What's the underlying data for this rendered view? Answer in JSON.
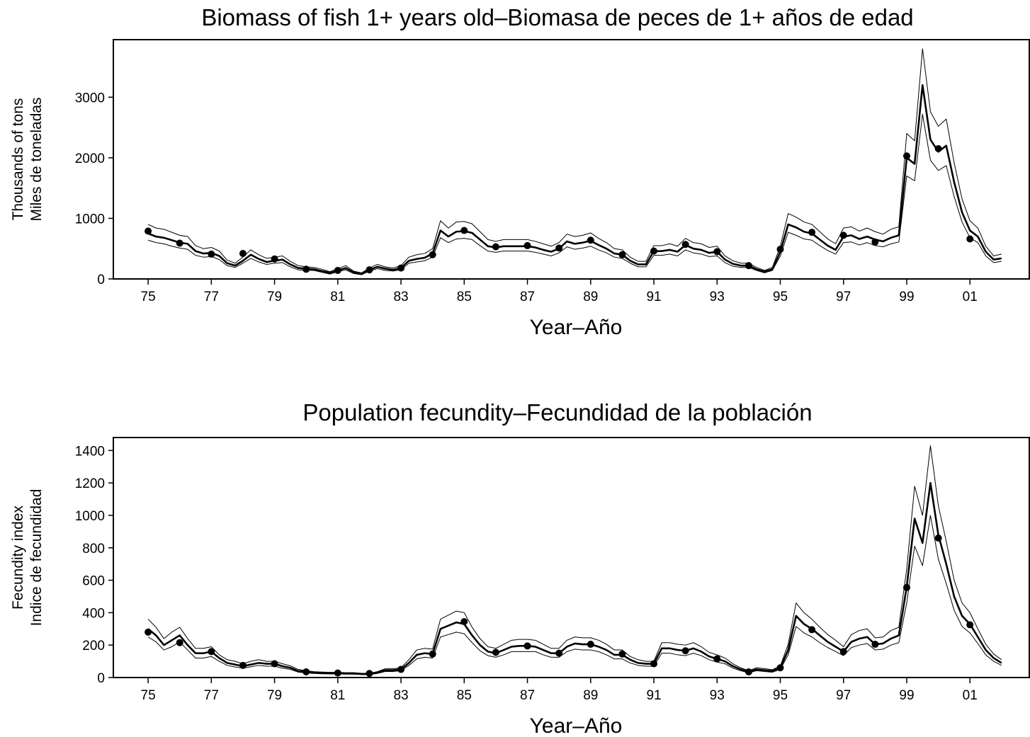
{
  "chart_data": [
    {
      "type": "line",
      "title": "Biomass of fish 1+ years old–Biomasa de peces de 1+ años de edad",
      "x_label": "Year–Año",
      "y_label": [
        "Thousands of tons",
        "Miles de toneladas"
      ],
      "xlim": [
        73.9,
        102.9
      ],
      "ylim": [
        0,
        3950
      ],
      "xticks": [
        75,
        77,
        79,
        81,
        83,
        85,
        87,
        89,
        91,
        93,
        95,
        97,
        99,
        {
          "value": 101,
          "label": "01"
        }
      ],
      "yticks": [
        0,
        1000,
        2000,
        3000
      ],
      "x": [
        75,
        75.25,
        75.5,
        75.75,
        76,
        76.25,
        76.5,
        76.75,
        77,
        77.25,
        77.5,
        77.75,
        78,
        78.25,
        78.5,
        78.75,
        79,
        79.25,
        79.5,
        79.75,
        80,
        80.25,
        80.5,
        80.75,
        81,
        81.25,
        81.5,
        81.75,
        82,
        82.25,
        82.5,
        82.75,
        83,
        83.25,
        83.5,
        83.75,
        84,
        84.25,
        84.5,
        84.75,
        85,
        85.25,
        85.5,
        85.75,
        86,
        86.25,
        86.5,
        86.75,
        87,
        87.25,
        87.5,
        87.75,
        88,
        88.25,
        88.5,
        88.75,
        89,
        89.25,
        89.5,
        89.75,
        90,
        90.25,
        90.5,
        90.75,
        91,
        91.25,
        91.5,
        91.75,
        92,
        92.25,
        92.5,
        92.75,
        93,
        93.25,
        93.5,
        93.75,
        94,
        94.25,
        94.5,
        94.75,
        95,
        95.25,
        95.5,
        95.75,
        96,
        96.25,
        96.5,
        96.75,
        97,
        97.25,
        97.5,
        97.75,
        98,
        98.25,
        98.5,
        98.75,
        99,
        99.25,
        99.5,
        99.75,
        100,
        100.25,
        100.5,
        100.75,
        101,
        101.25,
        101.5,
        101.75,
        102
      ],
      "series": [
        {
          "color": "#000000",
          "line_width": 1,
          "values": [
            900,
            840,
            820,
            770,
            720,
            700,
            550,
            500,
            520,
            460,
            310,
            260,
            360,
            480,
            400,
            340,
            360,
            380,
            290,
            220,
            200,
            190,
            160,
            120,
            170,
            220,
            130,
            100,
            180,
            240,
            200,
            180,
            220,
            360,
            400,
            420,
            500,
            960,
            840,
            940,
            950,
            910,
            780,
            650,
            620,
            650,
            650,
            650,
            650,
            620,
            580,
            540,
            600,
            740,
            700,
            720,
            760,
            670,
            600,
            500,
            480,
            360,
            290,
            290,
            550,
            550,
            580,
            540,
            670,
            600,
            580,
            520,
            540,
            380,
            300,
            260,
            260,
            190,
            140,
            190,
            540,
            1080,
            1020,
            940,
            900,
            780,
            660,
            580,
            840,
            860,
            790,
            840,
            780,
            740,
            820,
            860,
            2400,
            2280,
            3800,
            2760,
            2520,
            2640,
            1920,
            1320,
            960,
            840,
            540,
            380,
            410
          ]
        },
        {
          "color": "#000000",
          "line_width": 1,
          "values": [
            640,
            600,
            580,
            540,
            510,
            490,
            390,
            360,
            370,
            320,
            220,
            190,
            260,
            340,
            280,
            240,
            260,
            270,
            200,
            150,
            140,
            140,
            110,
            80,
            120,
            150,
            90,
            70,
            130,
            170,
            140,
            130,
            150,
            260,
            280,
            300,
            360,
            680,
            600,
            660,
            670,
            650,
            550,
            460,
            440,
            460,
            460,
            460,
            460,
            440,
            410,
            380,
            430,
            530,
            490,
            510,
            540,
            480,
            430,
            360,
            340,
            260,
            200,
            200,
            390,
            390,
            410,
            380,
            480,
            430,
            410,
            370,
            380,
            270,
            210,
            190,
            190,
            140,
            100,
            140,
            380,
            770,
            720,
            660,
            640,
            550,
            470,
            410,
            600,
            610,
            560,
            600,
            550,
            530,
            580,
            610,
            1700,
            1620,
            2720,
            1960,
            1790,
            1870,
            1360,
            940,
            680,
            600,
            380,
            270,
            290
          ]
        },
        {
          "color": "#000000",
          "line_width": 2.6,
          "values": [
            750,
            700,
            680,
            640,
            600,
            580,
            460,
            420,
            430,
            380,
            260,
            220,
            300,
            400,
            330,
            280,
            300,
            320,
            240,
            180,
            170,
            160,
            130,
            100,
            140,
            180,
            110,
            80,
            150,
            200,
            170,
            150,
            180,
            300,
            330,
            350,
            420,
            800,
            700,
            780,
            790,
            760,
            650,
            540,
            520,
            540,
            540,
            540,
            540,
            520,
            480,
            450,
            500,
            620,
            580,
            600,
            630,
            560,
            500,
            420,
            400,
            300,
            240,
            240,
            460,
            460,
            480,
            450,
            560,
            500,
            480,
            430,
            450,
            320,
            250,
            220,
            220,
            160,
            120,
            160,
            450,
            900,
            850,
            780,
            750,
            650,
            550,
            480,
            700,
            720,
            660,
            700,
            650,
            620,
            680,
            720,
            2000,
            1900,
            3200,
            2300,
            2100,
            2200,
            1600,
            1100,
            800,
            700,
            450,
            320,
            340
          ]
        },
        {
          "color": "#000000",
          "marker": "circle",
          "x": [
            75,
            76,
            77,
            78,
            79,
            80,
            81,
            82,
            83,
            84,
            85,
            86,
            87,
            88,
            89,
            90,
            91,
            92,
            93,
            94,
            95,
            96,
            97,
            98,
            99,
            100,
            101
          ],
          "values": [
            790,
            590,
            410,
            420,
            330,
            160,
            140,
            150,
            180,
            400,
            800,
            530,
            550,
            510,
            640,
            400,
            460,
            570,
            450,
            220,
            490,
            770,
            720,
            610,
            2030,
            2150,
            660
          ]
        }
      ]
    },
    {
      "type": "line",
      "title": "Population fecundity–Fecundidad de la población",
      "x_label": "Year–Año",
      "y_label": [
        "Fecundity index",
        "Indice de fecundidad"
      ],
      "xlim": [
        73.9,
        102.9
      ],
      "ylim": [
        0,
        1480
      ],
      "xticks": [
        75,
        77,
        79,
        81,
        83,
        85,
        87,
        89,
        91,
        93,
        95,
        97,
        99,
        {
          "value": 101,
          "label": "01"
        }
      ],
      "yticks": [
        0,
        200,
        400,
        600,
        800,
        1000,
        1200,
        1400
      ],
      "x": [
        75,
        75.25,
        75.5,
        75.75,
        76,
        76.25,
        76.5,
        76.75,
        77,
        77.25,
        77.5,
        77.75,
        78,
        78.25,
        78.5,
        78.75,
        79,
        79.25,
        79.5,
        79.75,
        80,
        80.25,
        80.5,
        80.75,
        81,
        81.25,
        81.5,
        81.75,
        82,
        82.25,
        82.5,
        82.75,
        83,
        83.25,
        83.5,
        83.75,
        84,
        84.25,
        84.5,
        84.75,
        85,
        85.25,
        85.5,
        85.75,
        86,
        86.25,
        86.5,
        86.75,
        87,
        87.25,
        87.5,
        87.75,
        88,
        88.25,
        88.5,
        88.75,
        89,
        89.25,
        89.5,
        89.75,
        90,
        90.25,
        90.5,
        90.75,
        91,
        91.25,
        91.5,
        91.75,
        92,
        92.25,
        92.5,
        92.75,
        93,
        93.25,
        93.5,
        93.75,
        94,
        94.25,
        94.5,
        94.75,
        95,
        95.25,
        95.5,
        95.75,
        96,
        96.25,
        96.5,
        96.75,
        97,
        97.25,
        97.5,
        97.75,
        98,
        98.25,
        98.5,
        98.75,
        99,
        99.25,
        99.5,
        99.75,
        100,
        100.25,
        100.5,
        100.75,
        101,
        101.25,
        101.5,
        101.75,
        102
      ],
      "series": [
        {
          "color": "#000000",
          "line_width": 1,
          "values": [
            360,
            310,
            240,
            280,
            310,
            240,
            180,
            180,
            190,
            140,
            110,
            100,
            85,
            100,
            110,
            100,
            100,
            85,
            72,
            50,
            42,
            36,
            34,
            32,
            32,
            30,
            30,
            26,
            26,
            36,
            54,
            54,
            60,
            110,
            170,
            180,
            175,
            360,
            385,
            410,
            400,
            310,
            240,
            190,
            180,
            205,
            230,
            235,
            235,
            230,
            205,
            180,
            180,
            230,
            250,
            245,
            245,
            230,
            205,
            170,
            170,
            130,
            110,
            100,
            100,
            215,
            215,
            205,
            200,
            215,
            190,
            155,
            140,
            120,
            85,
            60,
            42,
            60,
            55,
            48,
            72,
            205,
            460,
            400,
            360,
            310,
            265,
            230,
            190,
            265,
            290,
            300,
            245,
            250,
            290,
            310,
            670,
            1180,
            1000,
            1430,
            1060,
            840,
            600,
            460,
            400,
            300,
            205,
            145,
            110
          ]
        },
        {
          "color": "#000000",
          "line_width": 1,
          "values": [
            250,
            220,
            170,
            190,
            220,
            170,
            120,
            120,
            130,
            100,
            75,
            65,
            58,
            66,
            75,
            70,
            70,
            58,
            50,
            33,
            29,
            25,
            23,
            22,
            22,
            21,
            21,
            18,
            18,
            25,
            37,
            37,
            42,
            75,
            115,
            125,
            120,
            250,
            265,
            280,
            270,
            215,
            165,
            135,
            125,
            140,
            160,
            160,
            160,
            160,
            140,
            125,
            125,
            160,
            175,
            170,
            170,
            160,
            140,
            115,
            115,
            90,
            75,
            70,
            70,
            150,
            150,
            140,
            135,
            150,
            135,
            110,
            95,
            85,
            58,
            42,
            29,
            42,
            37,
            33,
            50,
            140,
            315,
            275,
            250,
            215,
            185,
            160,
            135,
            185,
            200,
            210,
            170,
            175,
            200,
            215,
            460,
            810,
            690,
            1000,
            730,
            580,
            415,
            315,
            275,
            210,
            140,
            100,
            75
          ]
        },
        {
          "color": "#000000",
          "line_width": 2.6,
          "values": [
            300,
            260,
            200,
            230,
            260,
            200,
            150,
            150,
            160,
            120,
            90,
            80,
            70,
            80,
            90,
            85,
            85,
            70,
            60,
            40,
            35,
            30,
            28,
            27,
            27,
            25,
            25,
            22,
            22,
            30,
            45,
            45,
            50,
            90,
            140,
            150,
            145,
            300,
            320,
            340,
            330,
            260,
            200,
            160,
            150,
            170,
            190,
            195,
            195,
            190,
            170,
            150,
            150,
            190,
            210,
            205,
            205,
            190,
            170,
            140,
            140,
            110,
            90,
            85,
            85,
            180,
            180,
            170,
            165,
            180,
            160,
            130,
            115,
            100,
            70,
            50,
            35,
            50,
            45,
            40,
            60,
            170,
            380,
            330,
            300,
            260,
            220,
            190,
            160,
            220,
            240,
            250,
            205,
            210,
            240,
            260,
            560,
            980,
            830,
            1200,
            880,
            700,
            500,
            380,
            330,
            250,
            170,
            120,
            90
          ]
        },
        {
          "color": "#000000",
          "marker": "circle",
          "x": [
            75,
            76,
            77,
            78,
            79,
            80,
            81,
            82,
            83,
            84,
            85,
            86,
            87,
            88,
            89,
            90,
            91,
            92,
            93,
            94,
            95,
            96,
            97,
            98,
            99,
            100,
            101
          ],
          "values": [
            280,
            215,
            160,
            75,
            85,
            35,
            28,
            25,
            50,
            145,
            345,
            155,
            195,
            150,
            205,
            145,
            85,
            165,
            115,
            35,
            60,
            295,
            160,
            205,
            555,
            860,
            325
          ]
        }
      ]
    }
  ]
}
